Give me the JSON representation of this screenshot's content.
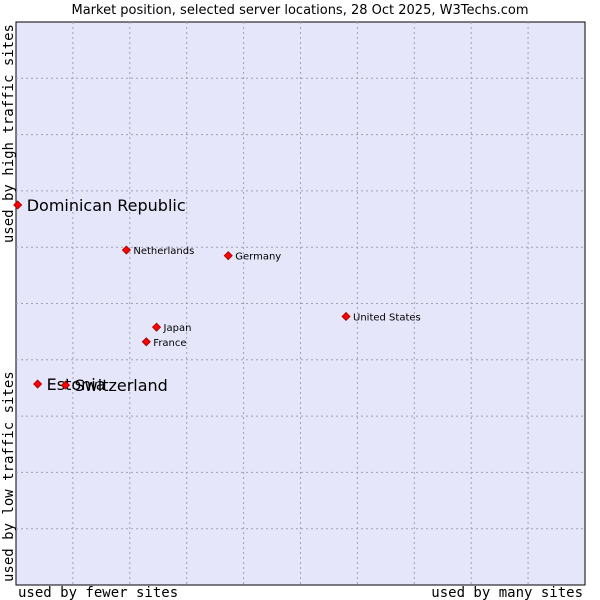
{
  "chart_data": {
    "type": "scatter",
    "title": "Market position, selected server locations, 28 Oct 2025, W3Techs.com",
    "xlabel_left": "used by fewer sites",
    "xlabel_right": "used by many sites",
    "ylabel_bottom": "used by low traffic sites",
    "ylabel_top": "used by high traffic sites",
    "xlim": [
      0,
      100
    ],
    "ylim": [
      0,
      100
    ],
    "grid": true,
    "colors": {
      "plot_bg": "#e6e6fa",
      "grid": "#a0a0b4",
      "marker": "#ff0000",
      "marker_edge": "#990000"
    },
    "points": [
      {
        "label": "Dominican Republic",
        "x": 0.3,
        "y": 67.5,
        "size": "large"
      },
      {
        "label": "Netherlands",
        "x": 19.4,
        "y": 59.5,
        "size": "small"
      },
      {
        "label": "Germany",
        "x": 37.3,
        "y": 58.5,
        "size": "small"
      },
      {
        "label": "United States",
        "x": 58.0,
        "y": 47.7,
        "size": "small"
      },
      {
        "label": "Japan",
        "x": 24.7,
        "y": 45.8,
        "size": "small"
      },
      {
        "label": "France",
        "x": 22.9,
        "y": 43.2,
        "size": "small"
      },
      {
        "label": "Estonia",
        "x": 3.8,
        "y": 35.7,
        "size": "large"
      },
      {
        "label": "Switzerland",
        "x": 8.7,
        "y": 35.5,
        "size": "large"
      }
    ]
  }
}
